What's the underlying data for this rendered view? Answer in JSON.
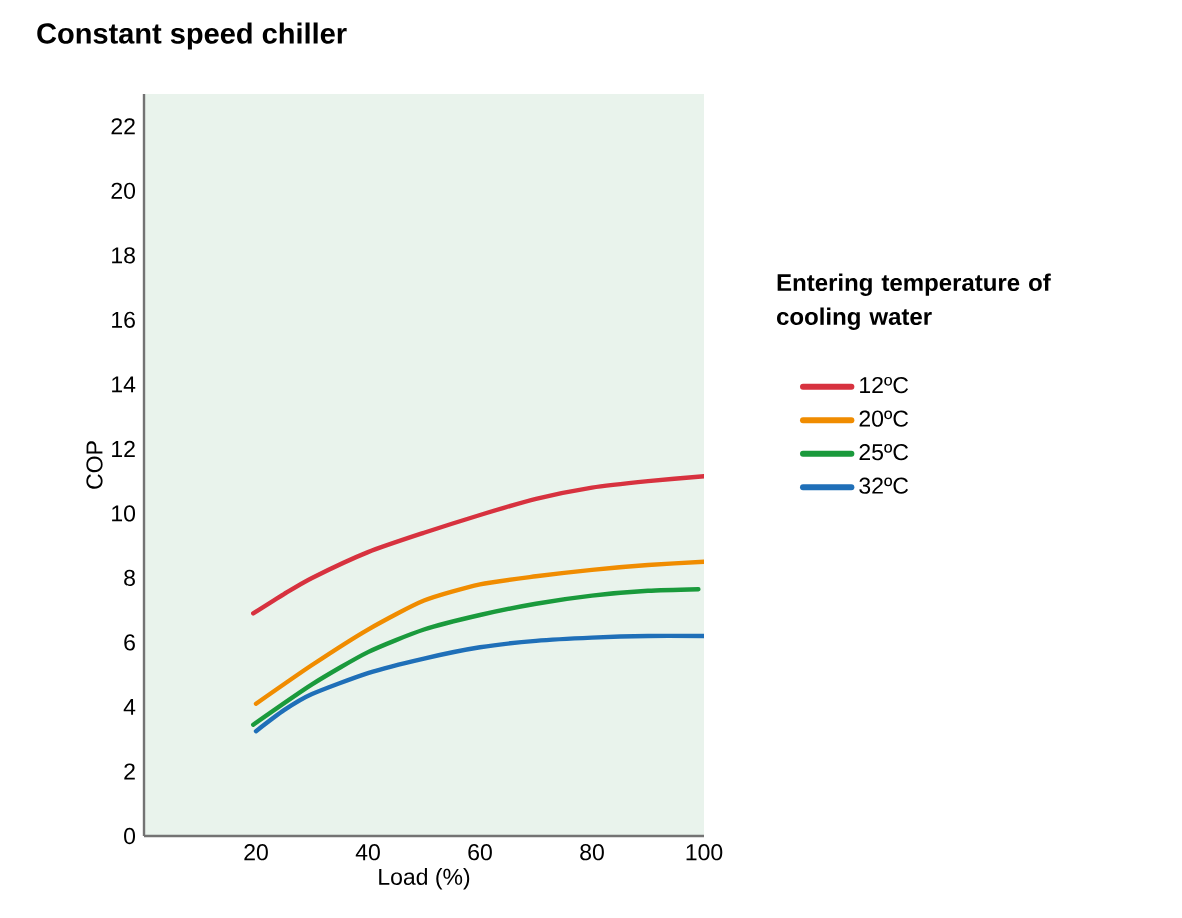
{
  "chart_data": {
    "type": "line",
    "title": "Constant speed chiller",
    "xlabel": "Load (%)",
    "ylabel": "COP",
    "legend_title": "Entering temperature of cooling water",
    "xlim": [
      0,
      100
    ],
    "ylim": [
      0,
      23
    ],
    "xticks": [
      20,
      40,
      60,
      80,
      100
    ],
    "yticks": [
      0,
      2,
      4,
      6,
      8,
      10,
      12,
      14,
      16,
      18,
      20,
      22
    ],
    "legend": "right",
    "grid": false,
    "marker": "none",
    "line_style": "solid",
    "series": [
      {
        "name": "12ºC",
        "color": "#d7323f",
        "x": [
          19.5,
          25,
          30,
          40,
          50,
          60,
          70,
          80,
          90,
          100
        ],
        "values": [
          6.9,
          7.5,
          8.0,
          8.8,
          9.4,
          9.95,
          10.45,
          10.8,
          11.0,
          11.15
        ]
      },
      {
        "name": "20ºC",
        "color": "#f08c00",
        "x": [
          20,
          30,
          40,
          50,
          60,
          70,
          80,
          90,
          100
        ],
        "values": [
          4.1,
          5.3,
          6.4,
          7.3,
          7.8,
          8.05,
          8.25,
          8.4,
          8.5
        ]
      },
      {
        "name": "25ºC",
        "color": "#1a9a3c",
        "x": [
          19.5,
          30,
          40,
          50,
          60,
          70,
          80,
          90,
          99
        ],
        "values": [
          3.45,
          4.7,
          5.7,
          6.4,
          6.85,
          7.2,
          7.45,
          7.6,
          7.65
        ]
      },
      {
        "name": "32ºC",
        "color": "#1f6fb8",
        "x": [
          20,
          25,
          30,
          40,
          50,
          60,
          70,
          80,
          90,
          100
        ],
        "values": [
          3.25,
          3.9,
          4.4,
          5.05,
          5.5,
          5.85,
          6.05,
          6.15,
          6.2,
          6.2
        ]
      }
    ]
  }
}
